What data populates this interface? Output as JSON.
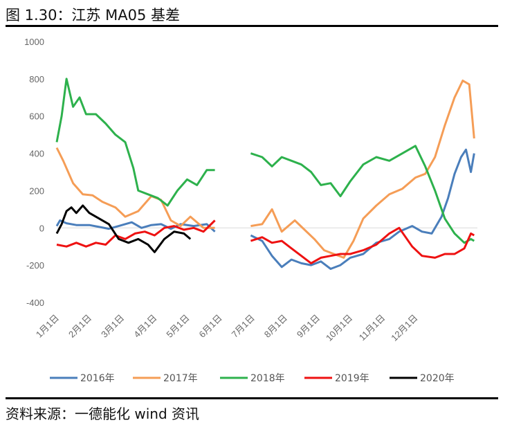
{
  "figure": {
    "title": "图 1.30：江苏 MA05 基差",
    "source": "资料来源：一德能化 wind 资讯"
  },
  "chart_data": {
    "type": "line",
    "ylim": [
      -400,
      1000
    ],
    "y_ticks": [
      "1000",
      "800",
      "600",
      "400",
      "200",
      "0",
      "-200",
      "-400"
    ],
    "x_categories": [
      "1月1日",
      "2月1日",
      "3月1日",
      "4月1日",
      "5月1日",
      "6月1日",
      "7月1日",
      "8月1日",
      "9月1日",
      "10月1日",
      "11月1日",
      "12月1日"
    ],
    "grid": false,
    "legend_position": "bottom",
    "series": [
      {
        "name": "2016年",
        "color": "#4a7ebb",
        "segments": [
          [
            [
              0,
              10
            ],
            [
              0.1,
              40
            ],
            [
              0.3,
              25
            ],
            [
              0.6,
              15
            ],
            [
              1.0,
              15
            ],
            [
              1.3,
              5
            ],
            [
              1.6,
              -5
            ],
            [
              1.9,
              10
            ],
            [
              2.3,
              30
            ],
            [
              2.6,
              0
            ],
            [
              2.9,
              15
            ],
            [
              3.2,
              20
            ],
            [
              3.5,
              -5
            ],
            [
              3.8,
              20
            ],
            [
              4.2,
              10
            ],
            [
              4.6,
              20
            ],
            [
              4.85,
              -20
            ]
          ],
          [
            [
              5.95,
              -40
            ],
            [
              6.3,
              -70
            ],
            [
              6.6,
              -150
            ],
            [
              6.9,
              -210
            ],
            [
              7.2,
              -170
            ],
            [
              7.5,
              -190
            ],
            [
              7.8,
              -200
            ],
            [
              8.1,
              -180
            ],
            [
              8.4,
              -220
            ],
            [
              8.7,
              -200
            ],
            [
              9.0,
              -160
            ],
            [
              9.4,
              -140
            ],
            [
              9.8,
              -80
            ],
            [
              10.2,
              -60
            ],
            [
              10.5,
              -20
            ],
            [
              10.9,
              10
            ],
            [
              11.2,
              -20
            ],
            [
              11.5,
              -30
            ],
            [
              11.8,
              60
            ],
            [
              12.0,
              160
            ],
            [
              12.2,
              290
            ],
            [
              12.4,
              380
            ],
            [
              12.55,
              420
            ],
            [
              12.7,
              300
            ],
            [
              12.8,
              400
            ]
          ]
        ]
      },
      {
        "name": "2017年",
        "color": "#f59d56",
        "segments": [
          [
            [
              0,
              430
            ],
            [
              0.2,
              360
            ],
            [
              0.5,
              240
            ],
            [
              0.8,
              180
            ],
            [
              1.1,
              175
            ],
            [
              1.4,
              140
            ],
            [
              1.8,
              110
            ],
            [
              2.1,
              60
            ],
            [
              2.5,
              90
            ],
            [
              2.9,
              170
            ],
            [
              3.2,
              150
            ],
            [
              3.5,
              40
            ],
            [
              3.8,
              10
            ],
            [
              4.1,
              60
            ],
            [
              4.5,
              0
            ],
            [
              4.85,
              0
            ]
          ],
          [
            [
              5.95,
              10
            ],
            [
              6.3,
              20
            ],
            [
              6.6,
              100
            ],
            [
              6.9,
              -20
            ],
            [
              7.3,
              40
            ],
            [
              7.6,
              -10
            ],
            [
              7.9,
              -60
            ],
            [
              8.2,
              -120
            ],
            [
              8.5,
              -140
            ],
            [
              8.8,
              -160
            ],
            [
              9.1,
              -70
            ],
            [
              9.4,
              50
            ],
            [
              9.8,
              120
            ],
            [
              10.2,
              180
            ],
            [
              10.6,
              210
            ],
            [
              11.0,
              270
            ],
            [
              11.3,
              290
            ],
            [
              11.6,
              380
            ],
            [
              11.9,
              550
            ],
            [
              12.2,
              700
            ],
            [
              12.45,
              790
            ],
            [
              12.65,
              770
            ],
            [
              12.8,
              480
            ]
          ]
        ]
      },
      {
        "name": "2018年",
        "color": "#2db14c",
        "segments": [
          [
            [
              0,
              460
            ],
            [
              0.15,
              600
            ],
            [
              0.3,
              800
            ],
            [
              0.5,
              650
            ],
            [
              0.7,
              700
            ],
            [
              0.9,
              610
            ],
            [
              1.2,
              610
            ],
            [
              1.5,
              560
            ],
            [
              1.8,
              500
            ],
            [
              2.1,
              460
            ],
            [
              2.35,
              320
            ],
            [
              2.5,
              200
            ],
            [
              2.8,
              180
            ],
            [
              3.1,
              160
            ],
            [
              3.4,
              120
            ],
            [
              3.7,
              200
            ],
            [
              4.0,
              260
            ],
            [
              4.3,
              230
            ],
            [
              4.6,
              310
            ],
            [
              4.85,
              310
            ]
          ],
          [
            [
              5.95,
              400
            ],
            [
              6.3,
              380
            ],
            [
              6.6,
              330
            ],
            [
              6.9,
              380
            ],
            [
              7.2,
              360
            ],
            [
              7.5,
              340
            ],
            [
              7.8,
              300
            ],
            [
              8.1,
              230
            ],
            [
              8.4,
              240
            ],
            [
              8.7,
              170
            ],
            [
              9.0,
              250
            ],
            [
              9.4,
              340
            ],
            [
              9.8,
              380
            ],
            [
              10.2,
              360
            ],
            [
              10.6,
              400
            ],
            [
              11.0,
              440
            ],
            [
              11.3,
              330
            ],
            [
              11.6,
              200
            ],
            [
              11.9,
              50
            ],
            [
              12.2,
              -30
            ],
            [
              12.5,
              -80
            ],
            [
              12.7,
              -60
            ],
            [
              12.8,
              -70
            ]
          ]
        ]
      },
      {
        "name": "2019年",
        "color": "#ee1111",
        "segments": [
          [
            [
              0,
              -90
            ],
            [
              0.3,
              -100
            ],
            [
              0.6,
              -80
            ],
            [
              0.9,
              -100
            ],
            [
              1.2,
              -80
            ],
            [
              1.5,
              -90
            ],
            [
              1.8,
              -40
            ],
            [
              2.1,
              -60
            ],
            [
              2.4,
              -30
            ],
            [
              2.7,
              -20
            ],
            [
              3.0,
              -40
            ],
            [
              3.3,
              0
            ],
            [
              3.6,
              10
            ],
            [
              3.9,
              -10
            ],
            [
              4.2,
              0
            ],
            [
              4.5,
              -20
            ],
            [
              4.85,
              40
            ]
          ],
          [
            [
              5.95,
              -70
            ],
            [
              6.3,
              -50
            ],
            [
              6.6,
              -80
            ],
            [
              6.9,
              -70
            ],
            [
              7.2,
              -110
            ],
            [
              7.5,
              -150
            ],
            [
              7.8,
              -190
            ],
            [
              8.1,
              -160
            ],
            [
              8.4,
              -150
            ],
            [
              8.7,
              -140
            ],
            [
              9.0,
              -140
            ],
            [
              9.4,
              -120
            ],
            [
              9.8,
              -90
            ],
            [
              10.2,
              -30
            ],
            [
              10.5,
              0
            ],
            [
              10.9,
              -100
            ],
            [
              11.2,
              -150
            ],
            [
              11.6,
              -160
            ],
            [
              11.9,
              -140
            ],
            [
              12.2,
              -140
            ],
            [
              12.5,
              -110
            ],
            [
              12.7,
              -30
            ],
            [
              12.8,
              -40
            ]
          ]
        ]
      },
      {
        "name": "2020年",
        "color": "#000000",
        "segments": [
          [
            [
              0,
              -30
            ],
            [
              0.15,
              20
            ],
            [
              0.3,
              90
            ],
            [
              0.45,
              110
            ],
            [
              0.6,
              80
            ],
            [
              0.8,
              120
            ],
            [
              1.0,
              80
            ],
            [
              1.3,
              50
            ],
            [
              1.6,
              20
            ],
            [
              1.9,
              -60
            ],
            [
              2.2,
              -80
            ],
            [
              2.5,
              -60
            ],
            [
              2.8,
              -90
            ],
            [
              3.0,
              -130
            ],
            [
              3.3,
              -60
            ],
            [
              3.6,
              -20
            ],
            [
              3.9,
              -30
            ],
            [
              4.1,
              -60
            ]
          ]
        ]
      }
    ]
  }
}
